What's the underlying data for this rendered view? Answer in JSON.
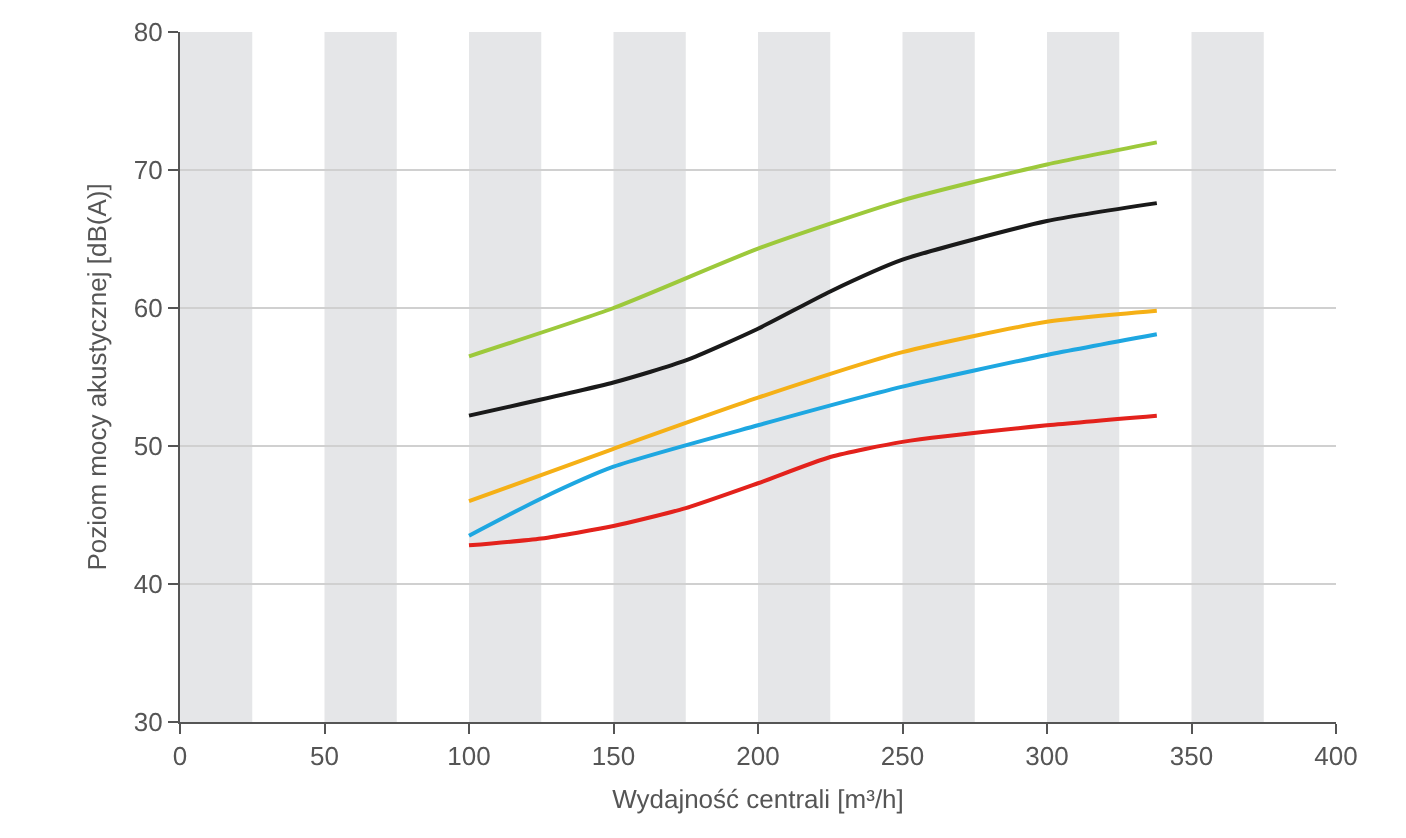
{
  "chart_data": {
    "type": "line",
    "xlabel": "Wydajność centrali [m³/h]",
    "ylabel": "Poziom mocy akustycznej [dB(A)]",
    "xlim": [
      0,
      400
    ],
    "xticks": [
      0,
      50,
      100,
      150,
      200,
      250,
      300,
      350,
      400
    ],
    "ylim": [
      30,
      80
    ],
    "yticks": [
      30,
      40,
      50,
      60,
      70,
      80
    ],
    "grid": "y",
    "marker": "none",
    "line_style": "solid",
    "bands": [
      {
        "axis": "x",
        "from": 0,
        "to": 25,
        "color": "#e5e6e8"
      },
      {
        "axis": "x",
        "from": 50,
        "to": 75,
        "color": "#e5e6e8"
      },
      {
        "axis": "x",
        "from": 100,
        "to": 125,
        "color": "#e5e6e8"
      },
      {
        "axis": "x",
        "from": 150,
        "to": 175,
        "color": "#e5e6e8"
      },
      {
        "axis": "x",
        "from": 200,
        "to": 225,
        "color": "#e5e6e8"
      },
      {
        "axis": "x",
        "from": 250,
        "to": 275,
        "color": "#e5e6e8"
      },
      {
        "axis": "x",
        "from": 300,
        "to": 325,
        "color": "#e5e6e8"
      },
      {
        "axis": "x",
        "from": 350,
        "to": 375,
        "color": "#e5e6e8"
      }
    ],
    "series": [
      {
        "color": "#9dc93b",
        "x": [
          100,
          150,
          200,
          250,
          300,
          338
        ],
        "values": [
          56.5,
          60,
          64.3,
          67.8,
          70.4,
          72
        ]
      },
      {
        "color": "#1a1a1a",
        "x": [
          100,
          150,
          175,
          200,
          225,
          250,
          300,
          338
        ],
        "values": [
          52.2,
          54.6,
          56.2,
          58.5,
          61.2,
          63.5,
          66.3,
          67.6
        ]
      },
      {
        "color": "#f5b016",
        "x": [
          100,
          150,
          200,
          250,
          300,
          338
        ],
        "values": [
          46,
          49.8,
          53.5,
          56.8,
          59,
          59.8
        ]
      },
      {
        "color": "#1ea7e1",
        "x": [
          100,
          125,
          150,
          200,
          250,
          300,
          338
        ],
        "values": [
          43.5,
          46.2,
          48.5,
          51.5,
          54.3,
          56.6,
          58.1
        ]
      },
      {
        "color": "#e3221c",
        "x": [
          100,
          125,
          150,
          175,
          200,
          225,
          250,
          300,
          338
        ],
        "values": [
          42.8,
          43.3,
          44.2,
          45.5,
          47.3,
          49.2,
          50.3,
          51.5,
          52.2
        ]
      }
    ]
  }
}
